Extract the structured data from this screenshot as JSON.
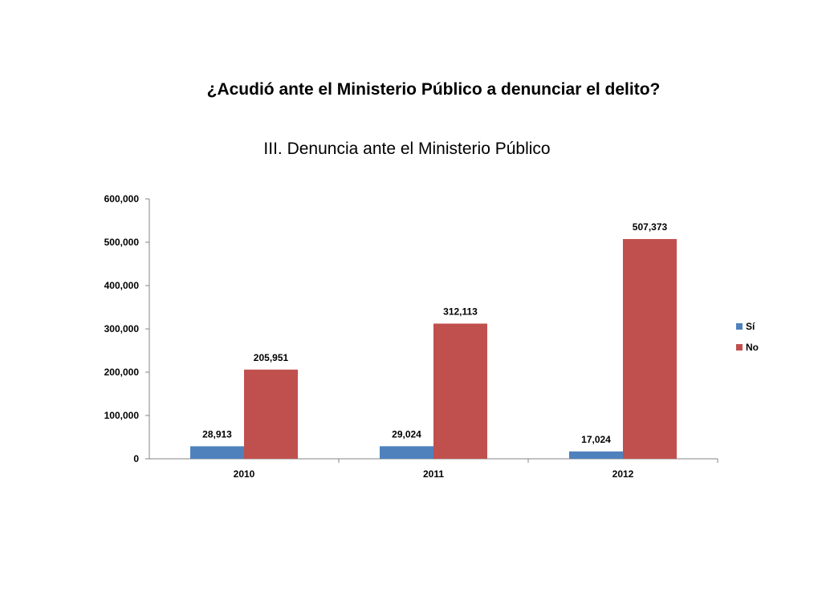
{
  "titles": {
    "main": "¿Acudió ante el Ministerio Público a denunciar el delito?",
    "sub": "III.  Denuncia ante el Ministerio Público"
  },
  "chart_data": {
    "type": "bar",
    "categories": [
      "2010",
      "2011",
      "2012"
    ],
    "series": [
      {
        "name": "Sí",
        "color": "#4F81BD",
        "values": [
          28913,
          29024,
          17024
        ],
        "labels": [
          "28,913",
          "29,024",
          "17,024"
        ]
      },
      {
        "name": "No",
        "color": "#C0504D",
        "values": [
          205951,
          312113,
          507373
        ],
        "labels": [
          "205,951",
          "312,113",
          "507,373"
        ]
      }
    ],
    "ylim": [
      0,
      600000
    ],
    "yticks": [
      0,
      100000,
      200000,
      300000,
      400000,
      500000,
      600000
    ],
    "ytick_labels": [
      "0",
      "100,000",
      "200,000",
      "300,000",
      "400,000",
      "500,000",
      "600,000"
    ],
    "legend_position": "right",
    "grid": false
  }
}
